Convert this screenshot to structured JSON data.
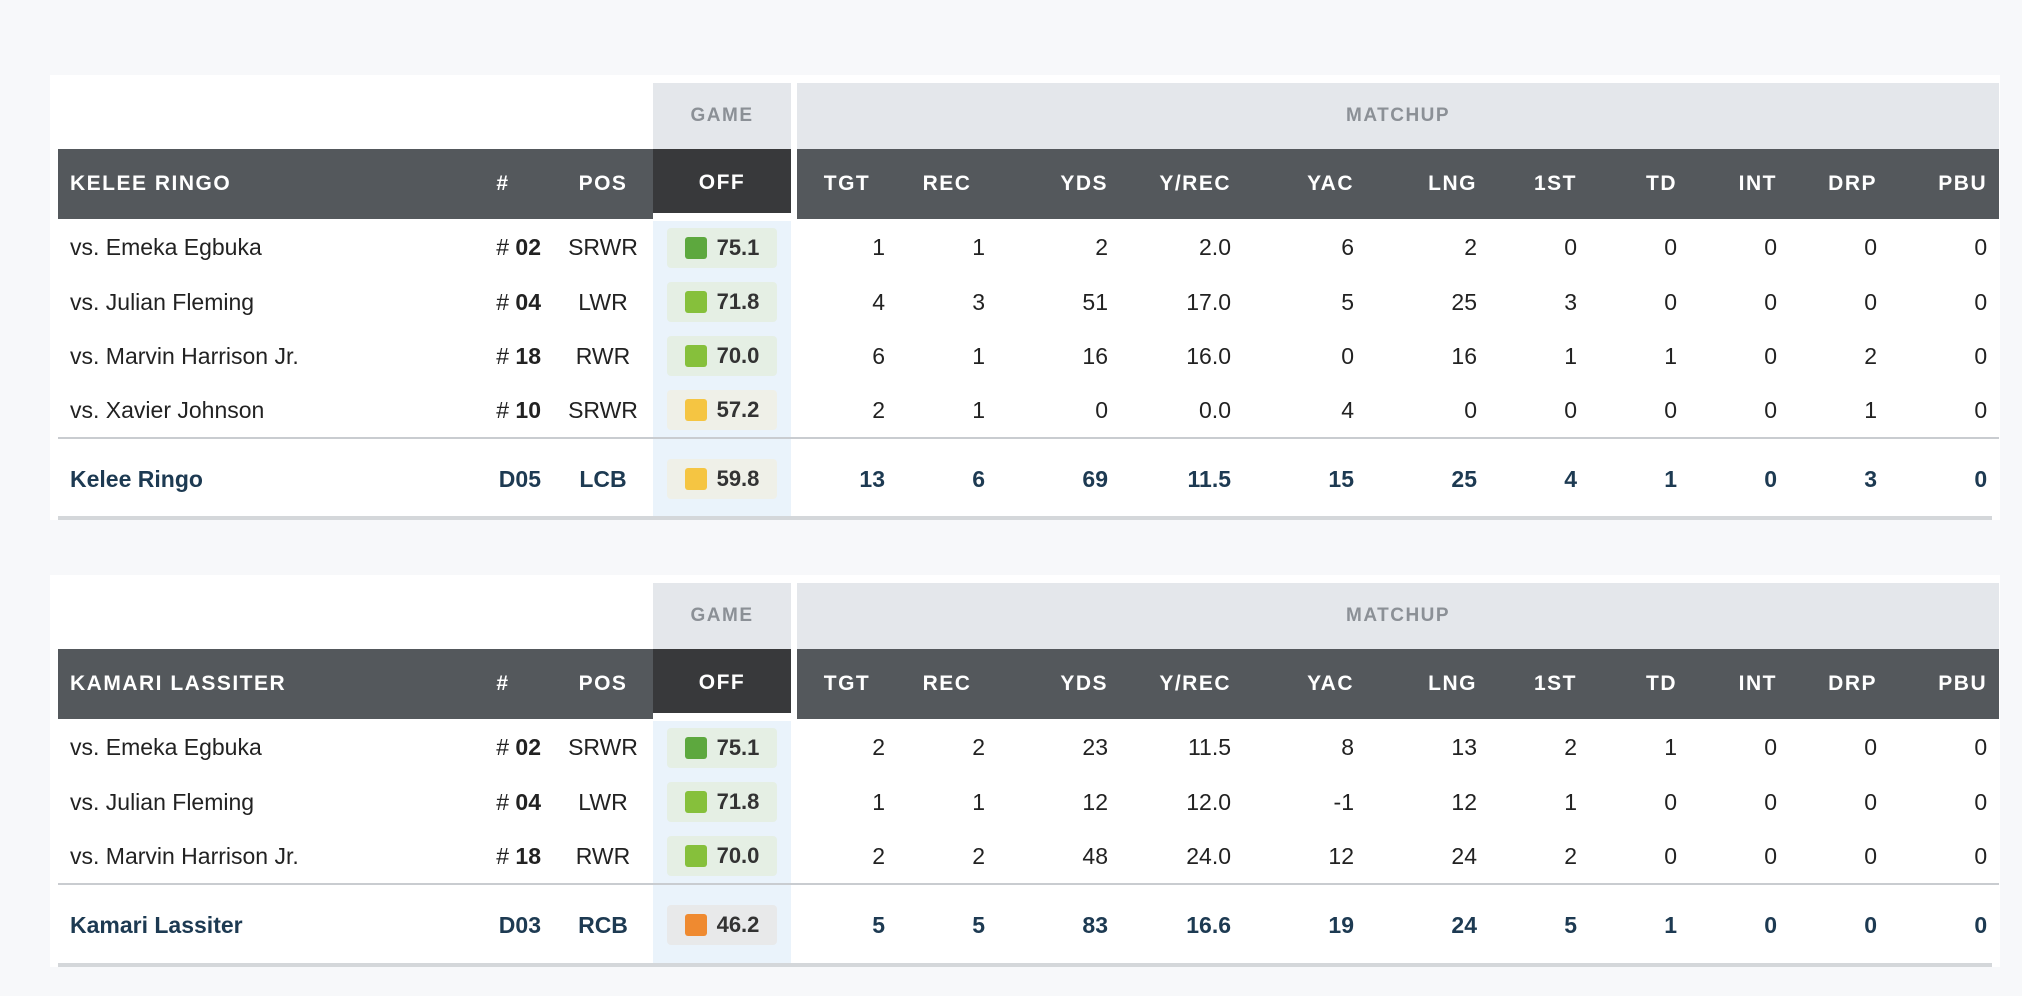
{
  "colors": {
    "green_dark": "#5da83e",
    "green_light": "#86c03b",
    "yellow": "#f5c542",
    "orange": "#ef8a30",
    "header_bg": "#54585c",
    "game_header_bg": "#38393b",
    "total_text": "#1d3a52"
  },
  "tables": [
    {
      "group_game": "GAME",
      "group_matchup": "MATCHUP",
      "headers": {
        "name": "KELEE RINGO",
        "num": "#",
        "pos": "POS",
        "game": "OFF",
        "stats": [
          "TGT",
          "REC",
          "YDS",
          "Y/REC",
          "YAC",
          "LNG",
          "1ST",
          "TD",
          "INT",
          "DRP",
          "PBU"
        ]
      },
      "rows": [
        {
          "name": "vs. Emeka Egbuka",
          "num_prefix": "#",
          "num": "02",
          "pos": "SRWR",
          "grade": "75.1",
          "grade_color": "#5da83e",
          "stats": [
            "1",
            "1",
            "2",
            "2.0",
            "6",
            "2",
            "0",
            "0",
            "0",
            "0",
            "0"
          ]
        },
        {
          "name": "vs. Julian Fleming",
          "num_prefix": "#",
          "num": "04",
          "pos": "LWR",
          "grade": "71.8",
          "grade_color": "#86c03b",
          "stats": [
            "4",
            "3",
            "51",
            "17.0",
            "5",
            "25",
            "3",
            "0",
            "0",
            "0",
            "0"
          ]
        },
        {
          "name": "vs. Marvin Harrison Jr.",
          "num_prefix": "#",
          "num": "18",
          "pos": "RWR",
          "grade": "70.0",
          "grade_color": "#86c03b",
          "stats": [
            "6",
            "1",
            "16",
            "16.0",
            "0",
            "16",
            "1",
            "1",
            "0",
            "2",
            "0"
          ]
        },
        {
          "name": "vs. Xavier Johnson",
          "num_prefix": "#",
          "num": "10",
          "pos": "SRWR",
          "grade": "57.2",
          "grade_color": "#f5c542",
          "stats": [
            "2",
            "1",
            "0",
            "0.0",
            "4",
            "0",
            "0",
            "0",
            "0",
            "1",
            "0"
          ]
        }
      ],
      "total": {
        "name": "Kelee Ringo",
        "num": "D05",
        "pos": "LCB",
        "grade": "59.8",
        "grade_color": "#f5c542",
        "stats": [
          "13",
          "6",
          "69",
          "11.5",
          "15",
          "25",
          "4",
          "1",
          "0",
          "3",
          "0"
        ]
      }
    },
    {
      "group_game": "GAME",
      "group_matchup": "MATCHUP",
      "headers": {
        "name": "KAMARI LASSITER",
        "num": "#",
        "pos": "POS",
        "game": "OFF",
        "stats": [
          "TGT",
          "REC",
          "YDS",
          "Y/REC",
          "YAC",
          "LNG",
          "1ST",
          "TD",
          "INT",
          "DRP",
          "PBU"
        ]
      },
      "rows": [
        {
          "name": "vs. Emeka Egbuka",
          "num_prefix": "#",
          "num": "02",
          "pos": "SRWR",
          "grade": "75.1",
          "grade_color": "#5da83e",
          "stats": [
            "2",
            "2",
            "23",
            "11.5",
            "8",
            "13",
            "2",
            "1",
            "0",
            "0",
            "0"
          ]
        },
        {
          "name": "vs. Julian Fleming",
          "num_prefix": "#",
          "num": "04",
          "pos": "LWR",
          "grade": "71.8",
          "grade_color": "#86c03b",
          "stats": [
            "1",
            "1",
            "12",
            "12.0",
            "-1",
            "12",
            "1",
            "0",
            "0",
            "0",
            "0"
          ]
        },
        {
          "name": "vs. Marvin Harrison Jr.",
          "num_prefix": "#",
          "num": "18",
          "pos": "RWR",
          "grade": "70.0",
          "grade_color": "#86c03b",
          "stats": [
            "2",
            "2",
            "48",
            "24.0",
            "12",
            "24",
            "2",
            "0",
            "0",
            "0",
            "0"
          ]
        }
      ],
      "total": {
        "name": "Kamari Lassiter",
        "num": "D03",
        "pos": "RCB",
        "grade": "46.2",
        "grade_color": "#ef8a30",
        "stats": [
          "5",
          "5",
          "83",
          "16.6",
          "19",
          "24",
          "5",
          "1",
          "0",
          "0",
          "0"
        ]
      }
    }
  ]
}
